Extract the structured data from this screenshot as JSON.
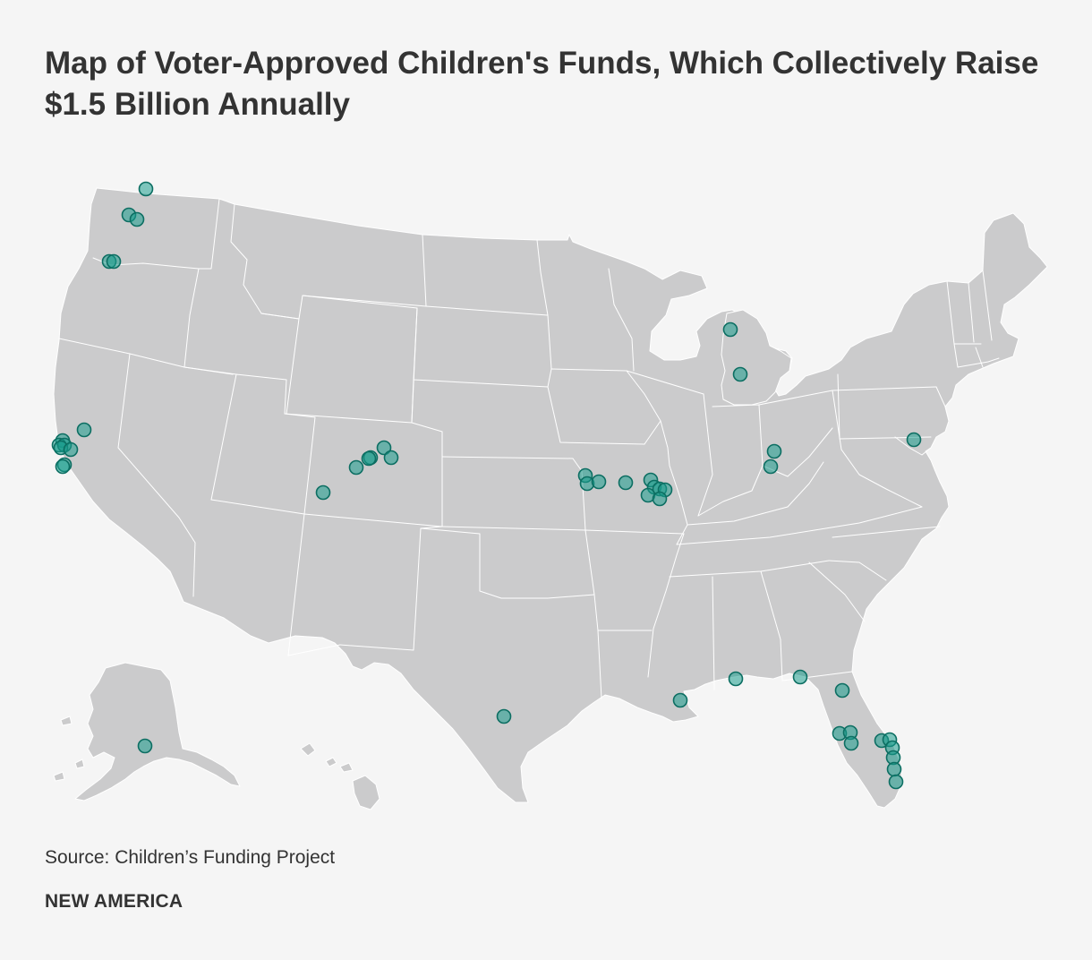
{
  "title": "Map of Voter-Approved Children's Funds, Which Collectively Raise $1.5 Billion Annually",
  "source": "Source: Children’s Funding Project",
  "brand": "NEW AMERICA",
  "colors": {
    "background": "#f5f5f5",
    "land": "#cbcbcc",
    "border": "#ffffff",
    "marker_fill": "#1a9c8c",
    "marker_stroke": "#0c6e62",
    "text": "#333333"
  },
  "map": {
    "region": "United States (contiguous states, Alaska, Hawaii)",
    "marker_icon": "circle-marker-icon",
    "marker_count": 57
  }
}
